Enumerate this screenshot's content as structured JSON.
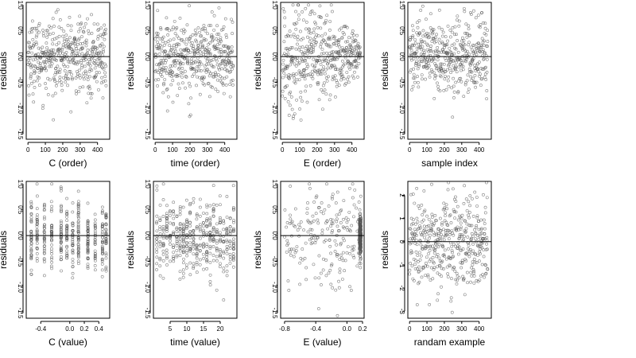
{
  "figure": {
    "title": "",
    "colors": {
      "point": "#555555",
      "line": "#000000",
      "background": "#ffffff"
    }
  },
  "chart_data": [
    {
      "id": "C-order",
      "type": "scatter",
      "xlabel": "C (order)",
      "ylabel": "residuals",
      "xlim": [
        -10,
        470
      ],
      "ylim": [
        -1.6,
        1.05
      ],
      "xticks": [
        0,
        100,
        200,
        300,
        400
      ],
      "yticks": [
        -1.5,
        -1.0,
        -0.5,
        0.0,
        0.5,
        1.0
      ],
      "ytick_labels": [
        "-1.5",
        "-1.0",
        "-0.5",
        "0.0",
        "0.5",
        "1.0"
      ],
      "hline": 0,
      "n_points": 450,
      "pattern": "index-uniform",
      "spread": 0.35
    },
    {
      "id": "time-order",
      "type": "scatter",
      "xlabel": "time (order)",
      "ylabel": "residuals",
      "xlim": [
        -10,
        470
      ],
      "ylim": [
        -1.6,
        1.05
      ],
      "xticks": [
        0,
        100,
        200,
        300,
        400
      ],
      "yticks": [
        -1.5,
        -1.0,
        -0.5,
        0.0,
        0.5,
        1.0
      ],
      "ytick_labels": [
        "-1.5",
        "-1.0",
        "-0.5",
        "0.0",
        "0.5",
        "1.0"
      ],
      "hline": 0,
      "n_points": 450,
      "pattern": "index-uniform",
      "spread": 0.35
    },
    {
      "id": "E-order",
      "type": "scatter",
      "xlabel": "E (order)",
      "ylabel": "residuals",
      "xlim": [
        -10,
        470
      ],
      "ylim": [
        -1.6,
        1.05
      ],
      "xticks": [
        0,
        100,
        200,
        300,
        400
      ],
      "yticks": [
        -1.5,
        -1.0,
        -0.5,
        0.0,
        0.5,
        1.0
      ],
      "ytick_labels": [
        "-1.5",
        "-1.0",
        "-0.5",
        "0.0",
        "0.5",
        "1.0"
      ],
      "hline": 0,
      "n_points": 450,
      "pattern": "index-funnel",
      "spread": 0.35
    },
    {
      "id": "sample-index",
      "type": "scatter",
      "xlabel": "sample index",
      "ylabel": "residuals",
      "xlim": [
        -10,
        470
      ],
      "ylim": [
        -1.6,
        1.05
      ],
      "xticks": [
        0,
        100,
        200,
        300,
        400
      ],
      "yticks": [
        -1.5,
        -1.0,
        -0.5,
        0.0,
        0.5,
        1.0
      ],
      "ytick_labels": [
        "-1.5",
        "-1.0",
        "-0.5",
        "0.0",
        "0.5",
        "1.0"
      ],
      "hline": 0,
      "n_points": 450,
      "pattern": "index-uniform",
      "spread": 0.35
    },
    {
      "id": "C-value",
      "type": "scatter",
      "xlabel": "C (value)",
      "ylabel": "residuals",
      "xlim": [
        -0.6,
        0.55
      ],
      "ylim": [
        -1.6,
        1.05
      ],
      "xticks": [
        -0.4,
        0.0,
        0.2,
        0.4
      ],
      "xtick_labels": [
        "-0.4",
        "0.0",
        "0.2",
        "0.4"
      ],
      "yticks": [
        -1.5,
        -1.0,
        -0.5,
        0.0,
        0.5,
        1.0
      ],
      "ytick_labels": [
        "-1.5",
        "-1.0",
        "-0.5",
        "0.0",
        "0.5",
        "1.0"
      ],
      "hline": 0,
      "n_points": 450,
      "pattern": "discrete",
      "levels": [
        -0.53,
        -0.45,
        -0.35,
        -0.25,
        -0.12,
        -0.04,
        0.04,
        0.12,
        0.25,
        0.35,
        0.45,
        0.5
      ],
      "spread": 0.35
    },
    {
      "id": "time-value",
      "type": "scatter",
      "xlabel": "time (value)",
      "ylabel": "residuals",
      "xlim": [
        0,
        25
      ],
      "ylim": [
        -1.6,
        1.05
      ],
      "xticks": [
        5,
        10,
        15,
        20
      ],
      "xtick_labels": [
        "5",
        "10",
        "15",
        "20"
      ],
      "yticks": [
        -1.5,
        -1.0,
        -0.5,
        0.0,
        0.5,
        1.0
      ],
      "ytick_labels": [
        "-1.5",
        "-1.0",
        "-0.5",
        "0.0",
        "0.5",
        "1.0"
      ],
      "hline": 0,
      "n_points": 450,
      "pattern": "discrete",
      "levels": [
        1,
        2,
        3,
        4,
        5,
        6,
        7,
        8,
        9,
        10,
        11,
        12,
        13,
        14,
        15,
        16,
        17,
        18,
        19,
        20,
        21,
        22,
        23,
        24
      ],
      "spread": 0.35
    },
    {
      "id": "E-value",
      "type": "scatter",
      "xlabel": "E (value)",
      "ylabel": "residuals",
      "xlim": [
        -0.85,
        0.22
      ],
      "ylim": [
        -1.6,
        1.05
      ],
      "xticks": [
        -0.8,
        -0.4,
        0.0,
        0.2
      ],
      "xtick_labels": [
        "-0.8",
        "-0.4",
        "0.0",
        "0.2"
      ],
      "yticks": [
        -1.5,
        -1.0,
        -0.5,
        0.0,
        0.5,
        1.0
      ],
      "ytick_labels": [
        "-1.5",
        "-1.0",
        "-0.5",
        "0.0",
        "0.5",
        "1.0"
      ],
      "hline": 0,
      "n_points": 450,
      "pattern": "clustered-right",
      "cluster_x": 0.17,
      "spread": 0.35
    },
    {
      "id": "random-example",
      "type": "scatter",
      "xlabel": "randam example",
      "ylabel": "residuals",
      "xlim": [
        -10,
        470
      ],
      "ylim": [
        -3.3,
        2.6
      ],
      "xticks": [
        0,
        100,
        200,
        300,
        400
      ],
      "yticks": [
        -3,
        -2,
        -1,
        0,
        1,
        2
      ],
      "ytick_labels": [
        "-3",
        "-2",
        "-1",
        "0",
        "1",
        "2"
      ],
      "hline": 0,
      "n_points": 450,
      "pattern": "index-uniform",
      "spread": 1.0
    }
  ]
}
